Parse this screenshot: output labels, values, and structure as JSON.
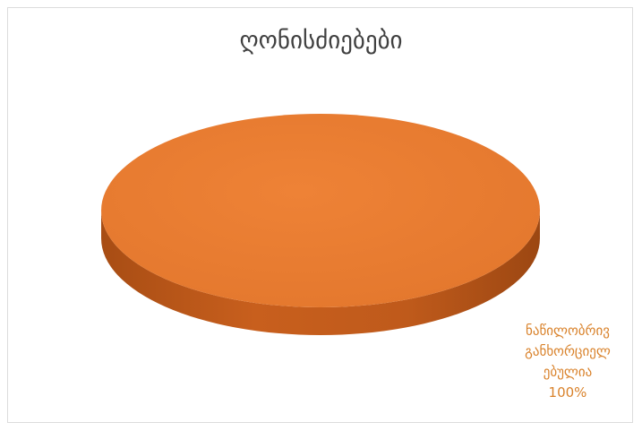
{
  "chart_data": {
    "type": "pie",
    "title": "ღონისძიებები",
    "slices": [
      {
        "label_lines": [
          "ნაწილობრივ",
          "განხორციელ",
          "ებულია"
        ],
        "value": 100,
        "value_label": "100%",
        "color": "#ed7d31"
      }
    ],
    "style": "3d",
    "legend": "none",
    "data_label_color": "#d9822b"
  }
}
